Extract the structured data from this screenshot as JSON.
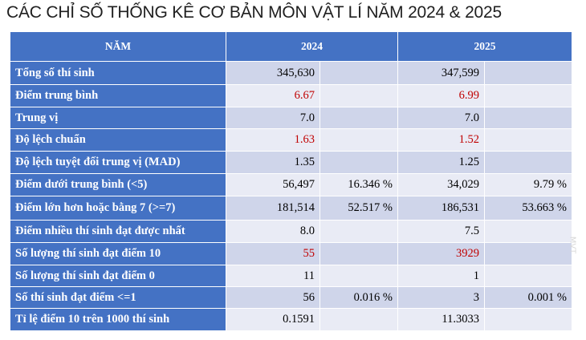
{
  "title": "CÁC CHỈ SỐ THỐNG KÊ CƠ BẢN MÔN VẬT LÍ NĂM 2024 & 2025",
  "header": {
    "label": "NĂM",
    "y2024": "2024",
    "y2025": "2025"
  },
  "colors": {
    "header_bg": "#4472c4",
    "row_odd": "#cfd5ea",
    "row_even": "#e9ebf5",
    "highlight": "#c00000"
  },
  "rows": [
    {
      "label": "Tổng số thí sinh",
      "v2024": "345,630",
      "p2024": "",
      "v2025": "347,599",
      "p2025": "",
      "red": false
    },
    {
      "label": "Điểm trung bình",
      "v2024": "6.67",
      "p2024": "",
      "v2025": "6.99",
      "p2025": "",
      "red": true
    },
    {
      "label": "Trung vị",
      "v2024": "7.0",
      "p2024": "",
      "v2025": "7.0",
      "p2025": "",
      "red": false
    },
    {
      "label": "Độ lệch chuẩn",
      "v2024": "1.63",
      "p2024": "",
      "v2025": "1.52",
      "p2025": "",
      "red": true
    },
    {
      "label": "Độ lệch tuyệt đối trung vị (MAD)",
      "v2024": "1.35",
      "p2024": "",
      "v2025": "1.25",
      "p2025": "",
      "red": false
    },
    {
      "label": "Điểm dưới trung bình (<5)",
      "v2024": "56,497",
      "p2024": "16.346 %",
      "v2025": "34,029",
      "p2025": "9.79 %",
      "red": false
    },
    {
      "label": "Điểm lớn hơn hoặc bằng 7 (>=7)",
      "v2024": "181,514",
      "p2024": "52.517 %",
      "v2025": "186,531",
      "p2025": "53.663 %",
      "red": false
    },
    {
      "label": "Điểm nhiều thí sinh đạt được nhất",
      "v2024": "8.0",
      "p2024": "",
      "v2025": "7.5",
      "p2025": "",
      "red": false
    },
    {
      "label": "Số lượng thí sinh đạt điểm 10",
      "v2024": "55",
      "p2024": "",
      "v2025": "3929",
      "p2025": "",
      "red": true
    },
    {
      "label": "Số lượng thí sinh đạt điểm 0",
      "v2024": "11",
      "p2024": "",
      "v2025": "1",
      "p2025": "",
      "red": false
    },
    {
      "label": "Số thí sinh đạt điểm <=1",
      "v2024": "56",
      "p2024": "0.016 %",
      "v2025": "3",
      "p2025": "0.001 %",
      "red": false
    },
    {
      "label": "Tỉ lệ điểm 10 trên 1000 thí sinh",
      "v2024": "0.1591",
      "p2024": "",
      "v2025": "11.3033",
      "p2025": "",
      "red": false
    }
  ]
}
